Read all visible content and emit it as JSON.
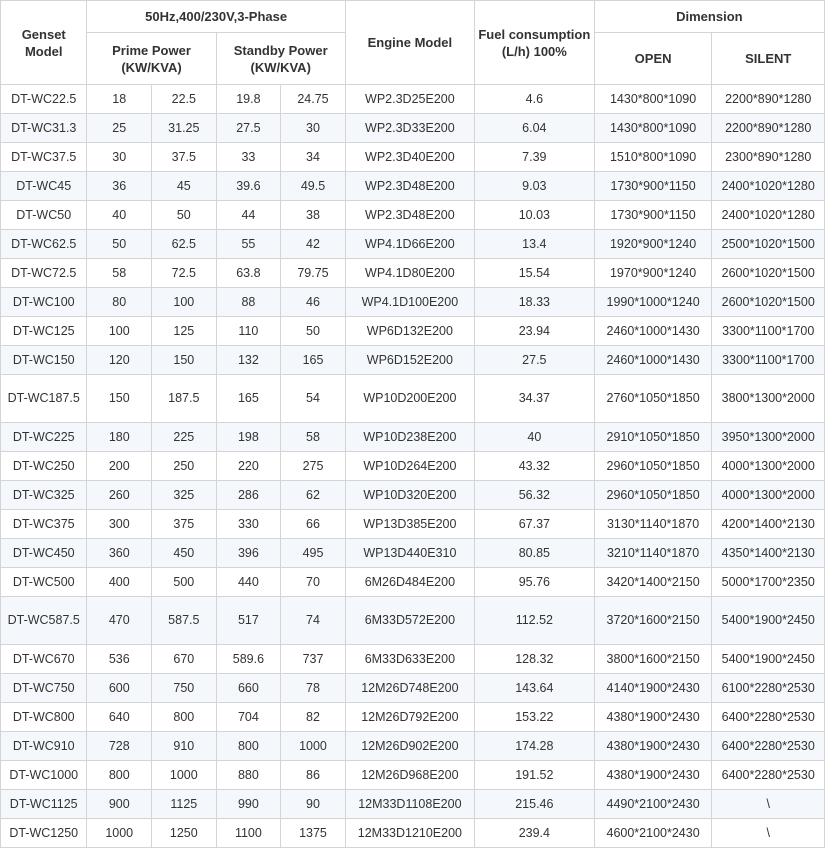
{
  "header": {
    "genset_model": "Genset Model",
    "phase": "50Hz,400/230V,3-Phase",
    "prime_power": "Prime Power (KW/KVA)",
    "standby_power": "Standby Power (KW/KVA)",
    "engine_model": "Engine Model",
    "fuel": "Fuel consumption (L/h) 100%",
    "dimension": "Dimension",
    "open": "OPEN",
    "silent": "SILENT"
  },
  "rows": [
    [
      "DT-WC22.5",
      "18",
      "22.5",
      "19.8",
      "24.75",
      "WP2.3D25E200",
      "4.6",
      "1430*800*1090",
      "2200*890*1280"
    ],
    [
      "DT-WC31.3",
      "25",
      "31.25",
      "27.5",
      "30",
      "WP2.3D33E200",
      "6.04",
      "1430*800*1090",
      "2200*890*1280"
    ],
    [
      "DT-WC37.5",
      "30",
      "37.5",
      "33",
      "34",
      "WP2.3D40E200",
      "7.39",
      "1510*800*1090",
      "2300*890*1280"
    ],
    [
      "DT-WC45",
      "36",
      "45",
      "39.6",
      "49.5",
      "WP2.3D48E200",
      "9.03",
      "1730*900*1150",
      "2400*1020*1280"
    ],
    [
      "DT-WC50",
      "40",
      "50",
      "44",
      "38",
      "WP2.3D48E200",
      "10.03",
      "1730*900*1150",
      "2400*1020*1280"
    ],
    [
      "DT-WC62.5",
      "50",
      "62.5",
      "55",
      "42",
      "WP4.1D66E200",
      "13.4",
      "1920*900*1240",
      "2500*1020*1500"
    ],
    [
      "DT-WC72.5",
      "58",
      "72.5",
      "63.8",
      "79.75",
      "WP4.1D80E200",
      "15.54",
      "1970*900*1240",
      "2600*1020*1500"
    ],
    [
      "DT-WC100",
      "80",
      "100",
      "88",
      "46",
      "WP4.1D100E200",
      "18.33",
      "1990*1000*1240",
      "2600*1020*1500"
    ],
    [
      "DT-WC125",
      "100",
      "125",
      "110",
      "50",
      "WP6D132E200",
      "23.94",
      "2460*1000*1430",
      "3300*1100*1700"
    ],
    [
      "DT-WC150",
      "120",
      "150",
      "132",
      "165",
      "WP6D152E200",
      "27.5",
      "2460*1000*1430",
      "3300*1100*1700"
    ],
    [
      "DT-WC187.5",
      "150",
      "187.5",
      "165",
      "54",
      "WP10D200E200",
      "34.37",
      "2760*1050*1850",
      "3800*1300*2000"
    ],
    [
      "DT-WC225",
      "180",
      "225",
      "198",
      "58",
      "WP10D238E200",
      "40",
      "2910*1050*1850",
      "3950*1300*2000"
    ],
    [
      "DT-WC250",
      "200",
      "250",
      "220",
      "275",
      "WP10D264E200",
      "43.32",
      "2960*1050*1850",
      "4000*1300*2000"
    ],
    [
      "DT-WC325",
      "260",
      "325",
      "286",
      "62",
      "WP10D320E200",
      "56.32",
      "2960*1050*1850",
      "4000*1300*2000"
    ],
    [
      "DT-WC375",
      "300",
      "375",
      "330",
      "66",
      "WP13D385E200",
      "67.37",
      "3130*1140*1870",
      "4200*1400*2130"
    ],
    [
      "DT-WC450",
      "360",
      "450",
      "396",
      "495",
      "WP13D440E310",
      "80.85",
      "3210*1140*1870",
      "4350*1400*2130"
    ],
    [
      "DT-WC500",
      "400",
      "500",
      "440",
      "70",
      "6M26D484E200",
      "95.76",
      "3420*1400*2150",
      "5000*1700*2350"
    ],
    [
      "DT-WC587.5",
      "470",
      "587.5",
      "517",
      "74",
      "6M33D572E200",
      "112.52",
      "3720*1600*2150",
      "5400*1900*2450"
    ],
    [
      "DT-WC670",
      "536",
      "670",
      "589.6",
      "737",
      "6M33D633E200",
      "128.32",
      "3800*1600*2150",
      "5400*1900*2450"
    ],
    [
      "DT-WC750",
      "600",
      "750",
      "660",
      "78",
      "12M26D748E200",
      "143.64",
      "4140*1900*2430",
      "6100*2280*2530"
    ],
    [
      "DT-WC800",
      "640",
      "800",
      "704",
      "82",
      "12M26D792E200",
      "153.22",
      "4380*1900*2430",
      "6400*2280*2530"
    ],
    [
      "DT-WC910",
      "728",
      "910",
      "800",
      "1000",
      "12M26D902E200",
      "174.28",
      "4380*1900*2430",
      "6400*2280*2530"
    ],
    [
      "DT-WC1000",
      "800",
      "1000",
      "880",
      "86",
      "12M26D968E200",
      "191.52",
      "4380*1900*2430",
      "6400*2280*2530"
    ],
    [
      "DT-WC1125",
      "900",
      "1125",
      "990",
      "90",
      "12M33D1108E200",
      "215.46",
      "4490*2100*2430",
      "\\"
    ],
    [
      "DT-WC1250",
      "1000",
      "1250",
      "1100",
      "1375",
      "12M33D1210E200",
      "239.4",
      "4600*2100*2430",
      "\\"
    ]
  ]
}
